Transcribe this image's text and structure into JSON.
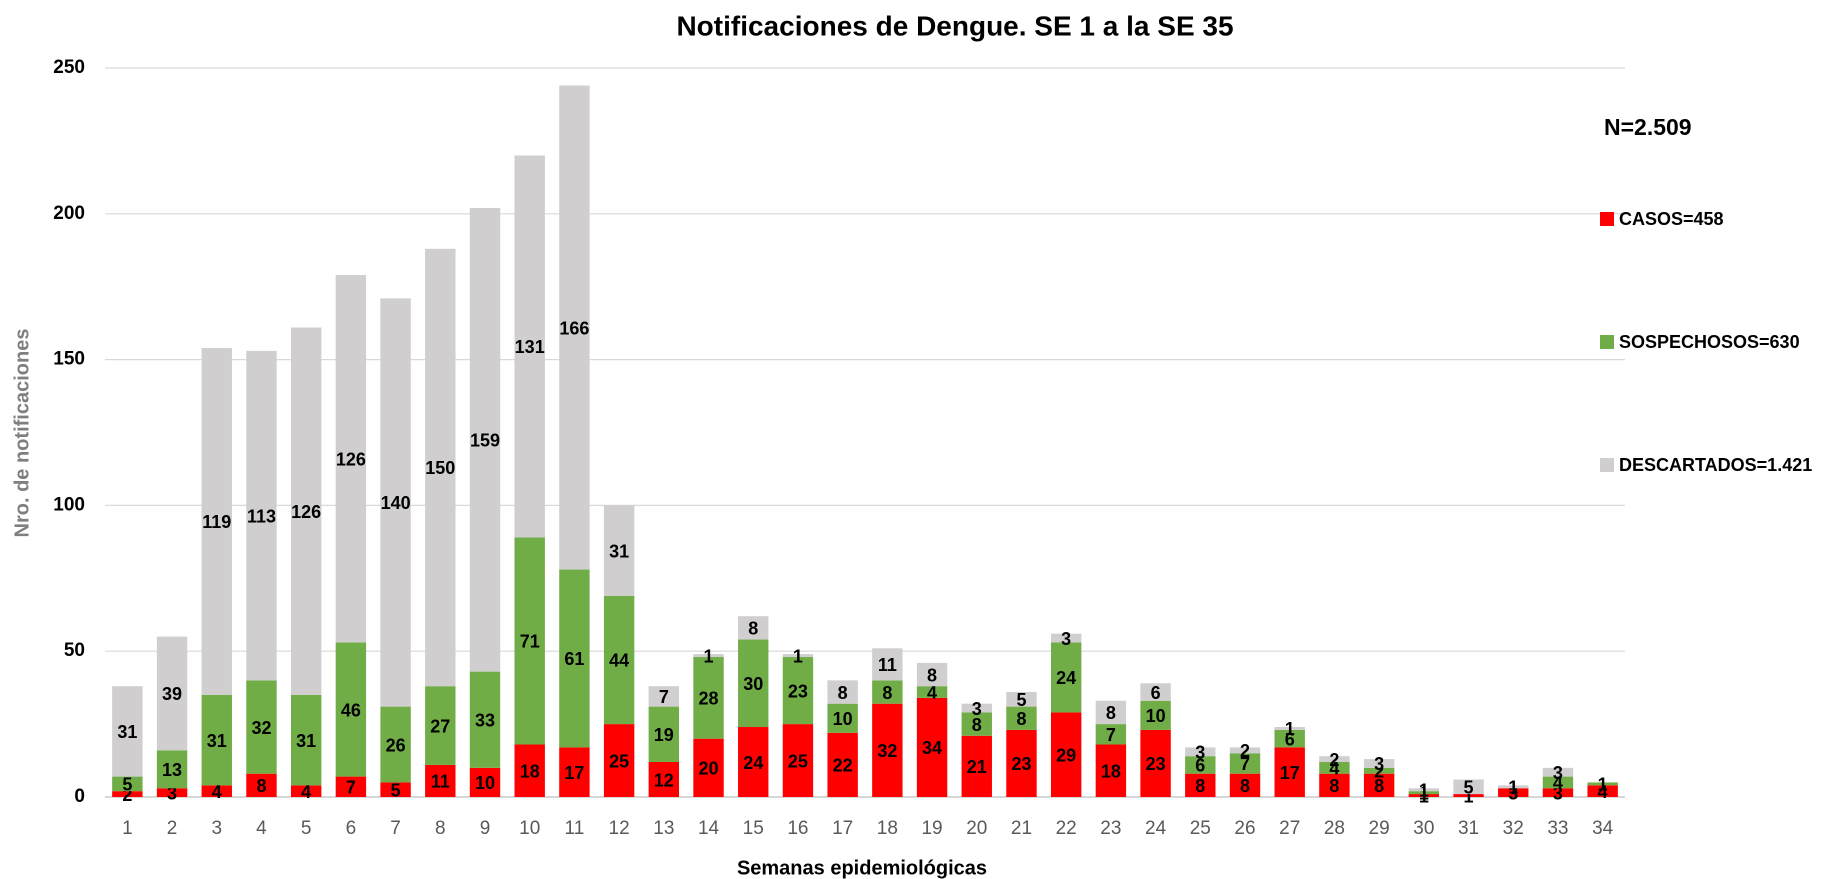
{
  "chart_data": {
    "type": "stacked-bar",
    "title": "Notificaciones de Dengue. SE 1 a la SE 35",
    "annotation": "N=2.509",
    "x_label": "Semanas epidemiológicas",
    "y_label": "Nro. de notificaciones",
    "categories": [
      "1",
      "2",
      "3",
      "4",
      "5",
      "6",
      "7",
      "8",
      "9",
      "10",
      "11",
      "12",
      "13",
      "14",
      "15",
      "16",
      "17",
      "18",
      "19",
      "20",
      "21",
      "22",
      "23",
      "24",
      "25",
      "26",
      "27",
      "28",
      "29",
      "30",
      "31",
      "32",
      "33",
      "34"
    ],
    "series": [
      {
        "name": "CASOS=458",
        "color": "#ff0000",
        "values": [
          2,
          3,
          4,
          8,
          4,
          7,
          5,
          11,
          10,
          18,
          17,
          25,
          12,
          20,
          24,
          25,
          22,
          32,
          34,
          21,
          23,
          29,
          18,
          23,
          8,
          8,
          17,
          8,
          8,
          1,
          1,
          3,
          3,
          4
        ]
      },
      {
        "name": "SOSPECHOSOS=630",
        "color": "#70ad47",
        "values": [
          5,
          13,
          31,
          32,
          31,
          46,
          26,
          27,
          33,
          71,
          61,
          44,
          19,
          28,
          30,
          23,
          10,
          8,
          4,
          8,
          8,
          24,
          7,
          10,
          6,
          7,
          6,
          4,
          2,
          1,
          null,
          null,
          4,
          1
        ]
      },
      {
        "name": "DESCARTADOS=1.421",
        "color": "#d0cece",
        "values": [
          31,
          39,
          119,
          113,
          126,
          126,
          140,
          150,
          159,
          131,
          166,
          31,
          7,
          1,
          8,
          1,
          8,
          11,
          8,
          3,
          5,
          3,
          8,
          6,
          3,
          2,
          1,
          2,
          3,
          1,
          5,
          1,
          3,
          null
        ]
      }
    ],
    "ylim": [
      0,
      250
    ],
    "yticks": [
      0,
      50,
      100,
      150,
      200,
      250
    ],
    "grid": true,
    "legend": "right"
  }
}
